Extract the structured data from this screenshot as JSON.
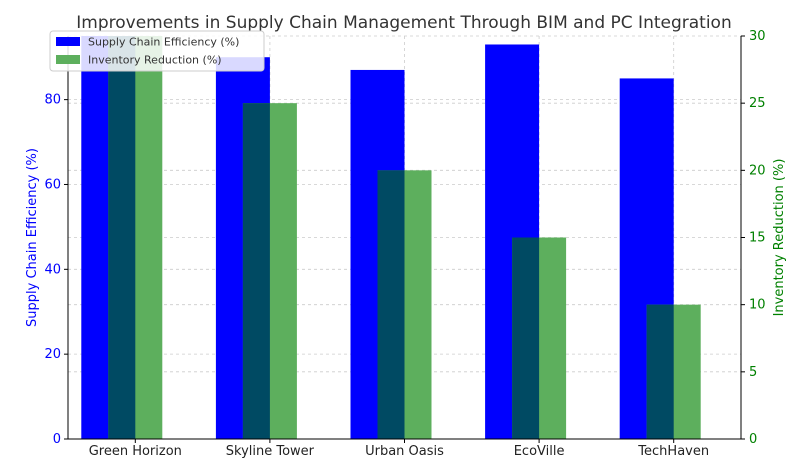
{
  "chart_data": {
    "type": "bar",
    "title": "Improvements in Supply Chain Management Through BIM and PC Integration",
    "categories": [
      "Green Horizon",
      "Skyline Tower",
      "Urban Oasis",
      "EcoVille",
      "TechHaven"
    ],
    "series": [
      {
        "name": "Supply Chain Efficiency (%)",
        "axis": "left",
        "color": "#0000ff",
        "values": [
          95,
          90,
          87,
          93,
          85
        ]
      },
      {
        "name": "Inventory Reduction (%)",
        "axis": "right",
        "color": "#5daf5d",
        "values": [
          30,
          25,
          20,
          15,
          10
        ]
      }
    ],
    "overlap_color": "#004a63",
    "ylabel_left": "Supply Chain Efficiency (%)",
    "ylabel_right": "Inventory Reduction (%)",
    "ylim_left": [
      0,
      95
    ],
    "ylim_right": [
      0,
      30
    ],
    "yticks_left": [
      0,
      20,
      40,
      60,
      80
    ],
    "yticks_right": [
      0,
      5,
      10,
      15,
      20,
      25,
      30
    ],
    "left_axis_color": "#0000ff",
    "right_axis_color": "#008000",
    "grid": true,
    "legend_position": "top-left"
  }
}
